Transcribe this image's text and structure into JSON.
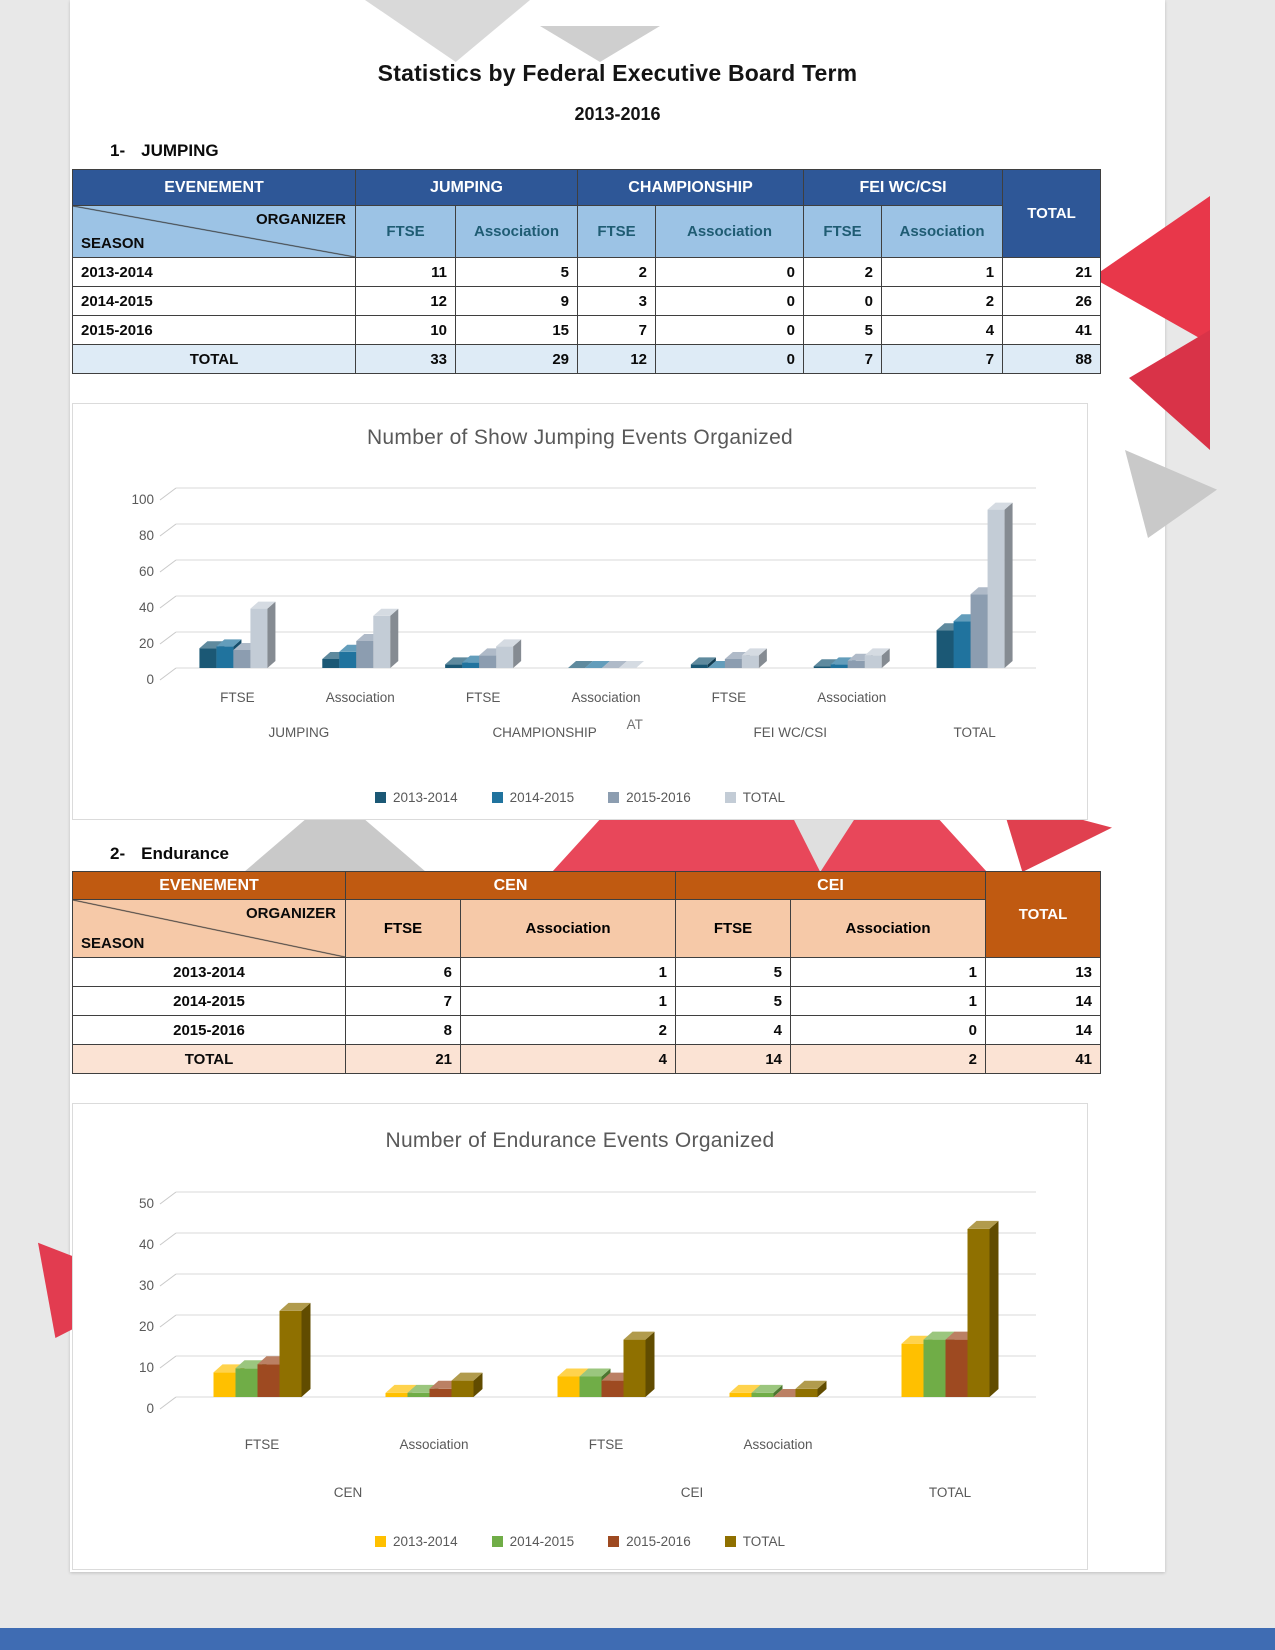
{
  "page": {
    "title": "Statistics by Federal Executive Board Term",
    "subtitle": "2013-2016",
    "footer_color": "#3F6CB3",
    "accent_red": "#E8475A",
    "accent_gray": "#CFCFCF"
  },
  "sections": [
    {
      "heading_number": "1-",
      "heading_label": "JUMPING",
      "table": {
        "corner_top": "EVENEMENT",
        "corner_right": "ORGANIZER",
        "corner_left": "SEASON",
        "groups": [
          {
            "label": "JUMPING"
          },
          {
            "label": "CHAMPIONSHIP"
          },
          {
            "label": "FEI WC/CSI"
          }
        ],
        "sub_headers": [
          "FTSE",
          "Association",
          "FTSE",
          "Association",
          "FTSE",
          "Association"
        ],
        "total_header": "TOTAL",
        "rows": [
          {
            "season": "2013-2014",
            "values": [
              11,
              5,
              2,
              0,
              2,
              1
            ],
            "total": 21
          },
          {
            "season": "2014-2015",
            "values": [
              12,
              9,
              3,
              0,
              0,
              2
            ],
            "total": 26
          },
          {
            "season": "2015-2016",
            "values": [
              10,
              15,
              7,
              0,
              5,
              4
            ],
            "total": 41
          }
        ],
        "total_row": {
          "label": "TOTAL",
          "values": [
            33,
            29,
            12,
            0,
            7,
            7
          ],
          "total": 88
        },
        "colors": {
          "header_bg": "#2E5797",
          "header_text": "#FFFFFF",
          "subheader_bg": "#9CC3E5",
          "subheader_text": "#1F5C73",
          "total_row_bg": "#DEEBF6",
          "row_bg": "#FFFFFF"
        }
      }
    },
    {
      "heading_number": "2-",
      "heading_label": "Endurance",
      "table": {
        "corner_top": "EVENEMENT",
        "corner_right": "ORGANIZER",
        "corner_left": "SEASON",
        "groups": [
          {
            "label": "CEN"
          },
          {
            "label": "CEI"
          }
        ],
        "sub_headers": [
          "FTSE",
          "Association",
          "FTSE",
          "Association"
        ],
        "total_header": "TOTAL",
        "rows": [
          {
            "season": "2013-2014",
            "values": [
              6,
              1,
              5,
              1
            ],
            "total": 13
          },
          {
            "season": "2014-2015",
            "values": [
              7,
              1,
              5,
              1
            ],
            "total": 14
          },
          {
            "season": "2015-2016",
            "values": [
              8,
              2,
              4,
              0
            ],
            "total": 14
          }
        ],
        "total_row": {
          "label": "TOTAL",
          "values": [
            21,
            4,
            14,
            2
          ],
          "total": 41
        },
        "colors": {
          "header_bg": "#C05A11",
          "header_text": "#FFFFFF",
          "subheader_bg": "#F6C9A8",
          "subheader_text": "#000000",
          "total_row_bg": "#FBE3D4",
          "row_bg": "#FFFFFF"
        }
      }
    }
  ],
  "chart_data": [
    {
      "type": "bar",
      "style": "3d-clustered",
      "title": "Number of Show Jumping Events Organized",
      "categories": [
        "FTSE",
        "Association",
        "FTSE",
        "Association",
        "FTSE",
        "Association",
        ""
      ],
      "category_groups": [
        {
          "label": "JUMPING",
          "span": [
            0,
            1
          ]
        },
        {
          "label": "CHAMPIONSHIP",
          "span": [
            2,
            3
          ]
        },
        {
          "label": "FEI WC/CSI",
          "span": [
            4,
            5
          ]
        },
        {
          "label": "TOTAL",
          "span": [
            6,
            6
          ]
        }
      ],
      "stray_label": "AT",
      "series": [
        {
          "name": "2013-2014",
          "color": "#1B5875",
          "values": [
            11,
            5,
            2,
            0,
            2,
            1,
            21
          ]
        },
        {
          "name": "2014-2015",
          "color": "#20739E",
          "values": [
            12,
            9,
            3,
            0,
            0,
            2,
            26
          ]
        },
        {
          "name": "2015-2016",
          "color": "#8C9DB0",
          "values": [
            10,
            15,
            7,
            0,
            5,
            4,
            41
          ]
        },
        {
          "name": "TOTAL",
          "color": "#C3CCD6",
          "values": [
            33,
            29,
            12,
            0,
            7,
            7,
            88
          ]
        }
      ],
      "ylim": [
        0,
        100
      ],
      "ytick_step": 20,
      "grid": true,
      "legend_position": "bottom"
    },
    {
      "type": "bar",
      "style": "3d-clustered",
      "title": "Number of Endurance Events Organized",
      "categories": [
        "FTSE",
        "Association",
        "FTSE",
        "Association",
        ""
      ],
      "category_groups": [
        {
          "label": "CEN",
          "span": [
            0,
            1
          ]
        },
        {
          "label": "CEI",
          "span": [
            2,
            3
          ]
        },
        {
          "label": "TOTAL",
          "span": [
            4,
            4
          ]
        }
      ],
      "series": [
        {
          "name": "2013-2014",
          "color": "#FFC000",
          "values": [
            6,
            1,
            5,
            1,
            13
          ]
        },
        {
          "name": "2014-2015",
          "color": "#70AD47",
          "values": [
            7,
            1,
            5,
            1,
            14
          ]
        },
        {
          "name": "2015-2016",
          "color": "#9E4A21",
          "values": [
            8,
            2,
            4,
            0,
            14
          ]
        },
        {
          "name": "TOTAL",
          "color": "#8F7000",
          "values": [
            21,
            4,
            14,
            2,
            41
          ]
        }
      ],
      "ylim": [
        0,
        50
      ],
      "ytick_step": 10,
      "grid": true,
      "legend_position": "bottom"
    }
  ]
}
